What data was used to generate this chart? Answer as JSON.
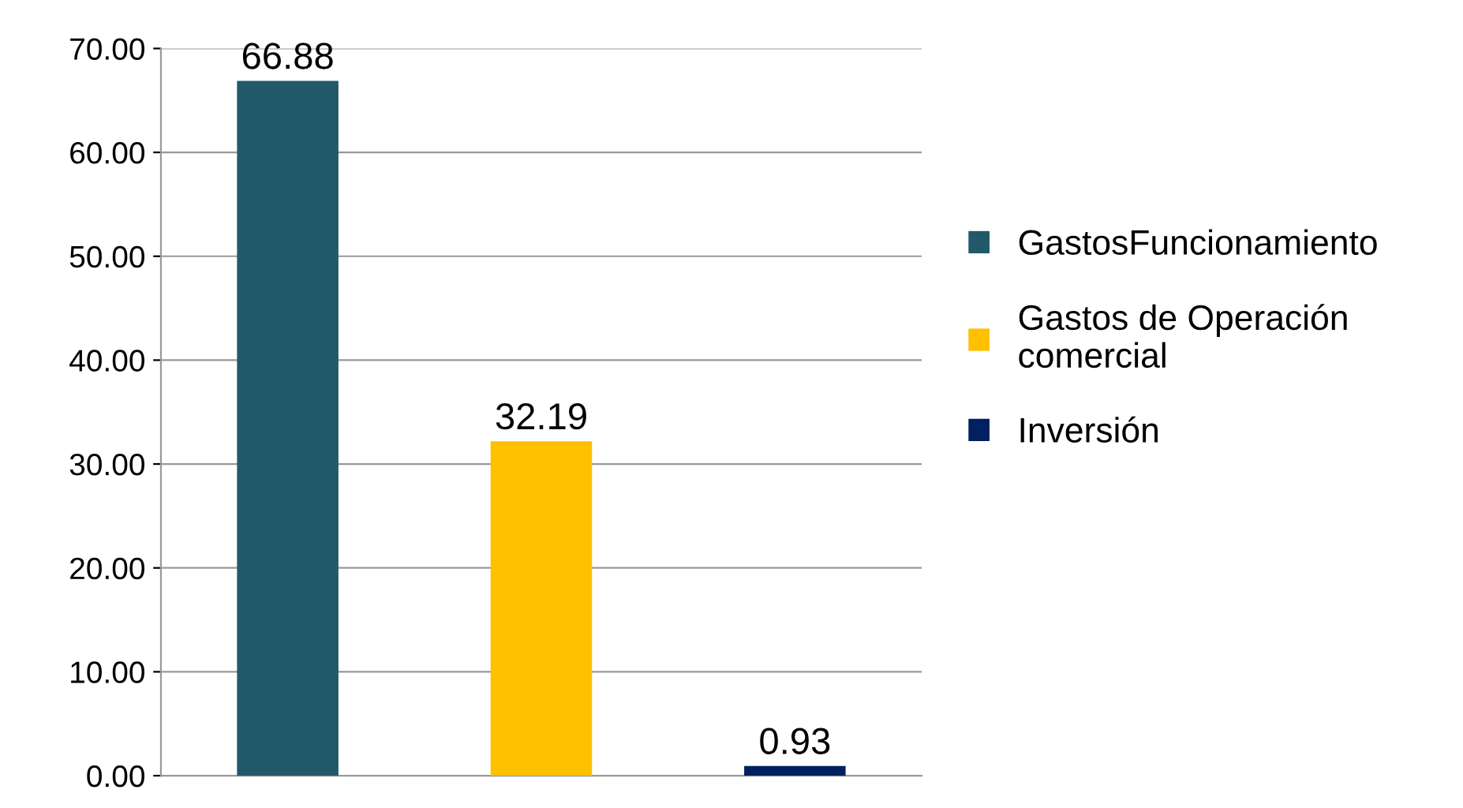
{
  "chart_data": {
    "type": "bar",
    "categories": [
      null,
      null,
      null
    ],
    "series": [
      {
        "name": "GastosFuncionamiento",
        "color": "#215968",
        "values": [
          66.88,
          null,
          null
        ]
      },
      {
        "name": "Gastos de Operación\ncomercial",
        "color": "#ffc000",
        "values": [
          null,
          32.19,
          null
        ]
      },
      {
        "name": "Inversión",
        "color": "#002060",
        "values": [
          null,
          null,
          0.93
        ]
      }
    ],
    "ylim": [
      0,
      70
    ],
    "yticks": [
      {
        "value": 0,
        "label": "0.00"
      },
      {
        "value": 10,
        "label": "10.00"
      },
      {
        "value": 20,
        "label": "20.00"
      },
      {
        "value": 30,
        "label": "30.00"
      },
      {
        "value": 40,
        "label": "40.00"
      },
      {
        "value": 50,
        "label": "50.00"
      },
      {
        "value": 60,
        "label": "60.00"
      },
      {
        "value": 70,
        "label": "70.00"
      }
    ],
    "grid": "y",
    "legend": "right",
    "data_labels": true
  }
}
